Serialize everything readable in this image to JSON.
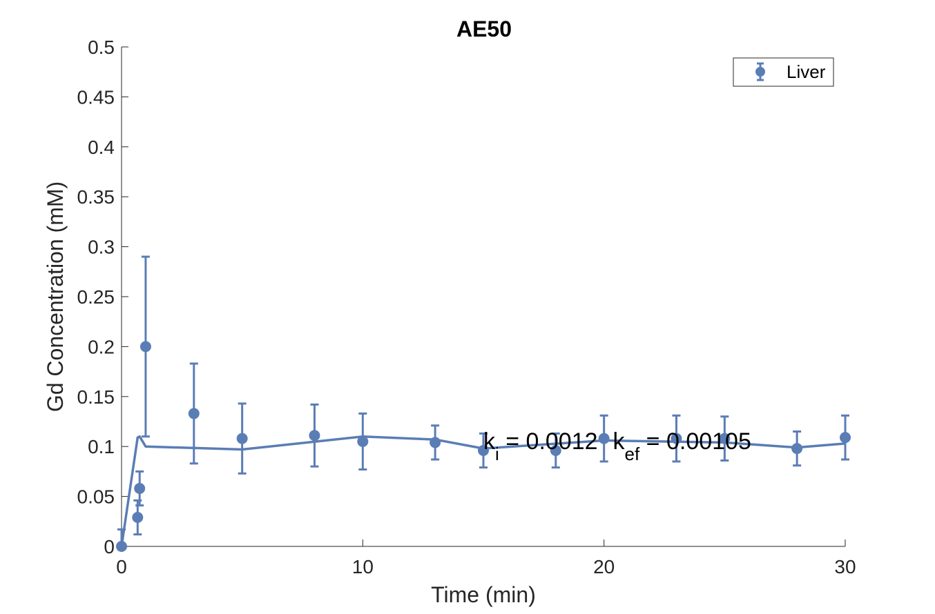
{
  "chart_data": {
    "type": "scatter",
    "title": "AE50",
    "xlabel": "Time (min)",
    "ylabel": "Gd Concentration (mM)",
    "xlim": [
      0,
      30
    ],
    "ylim": [
      0,
      0.5
    ],
    "xticks": [
      0,
      10,
      20,
      30
    ],
    "xtick_labels": [
      "0",
      "10",
      "20",
      "30"
    ],
    "yticks": [
      0,
      0.05,
      0.1,
      0.15,
      0.2,
      0.25,
      0.3,
      0.35,
      0.4,
      0.45,
      0.5
    ],
    "ytick_labels": [
      "0",
      "0.05",
      "0.1",
      "0.15",
      "0.2",
      "0.25",
      "0.3",
      "0.35",
      "0.4",
      "0.45",
      "0.5"
    ],
    "grid": false,
    "legend_position": "top-right",
    "color": "#5a7db5",
    "series": [
      {
        "name": "Liver",
        "kind": "errorbar-markers",
        "x": [
          0,
          0.667,
          0.75,
          1,
          3,
          5,
          8,
          10,
          13,
          15,
          18,
          20,
          23,
          25,
          28,
          30
        ],
        "y": [
          0,
          0.029,
          0.058,
          0.2,
          0.133,
          0.108,
          0.111,
          0.105,
          0.104,
          0.096,
          0.096,
          0.108,
          0.108,
          0.108,
          0.098,
          0.109
        ],
        "err": [
          0.017,
          0.017,
          0.017,
          0.09,
          0.05,
          0.035,
          0.031,
          0.028,
          0.017,
          0.017,
          0.017,
          0.023,
          0.023,
          0.022,
          0.017,
          0.022
        ]
      },
      {
        "kind": "fit-line",
        "x": [
          0,
          0.667,
          0.75,
          1,
          5,
          10,
          13,
          15,
          20,
          25,
          28,
          30
        ],
        "y": [
          0,
          0.109,
          0.11,
          0.1,
          0.097,
          0.11,
          0.107,
          0.098,
          0.106,
          0.104,
          0.099,
          0.103
        ]
      }
    ],
    "annotation": {
      "k_symbol": "k",
      "k_sub": "i",
      "k_value": " = 0.0012",
      "kef_symbol": "k",
      "kef_sub": "ef",
      "kef_value": " = 0.00105",
      "x": 15,
      "y": 0.1
    }
  }
}
